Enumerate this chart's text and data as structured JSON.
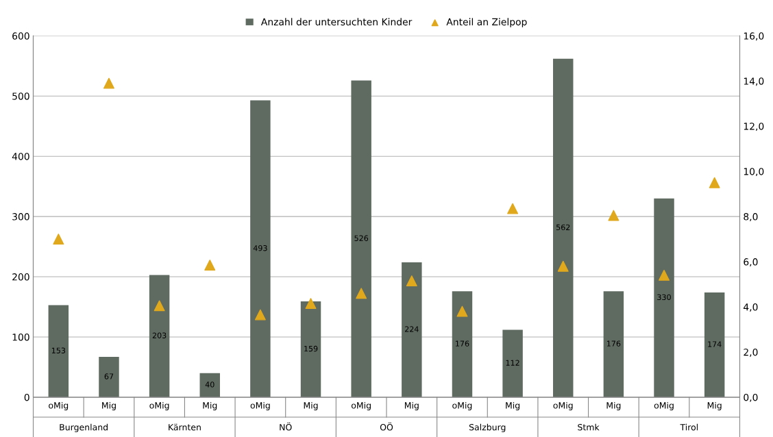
{
  "chart_data": {
    "type": "bar",
    "categories": [
      "oMig",
      "Mig",
      "oMig",
      "Mig",
      "oMig",
      "Mig",
      "oMig",
      "Mig",
      "oMig",
      "Mig",
      "oMig",
      "Mig",
      "oMig",
      "Mig"
    ],
    "series": [
      {
        "name": "Anzahl der untersuchten Kinder",
        "color": "#5f6a60",
        "values": [
          153,
          67,
          203,
          40,
          493,
          159,
          526,
          224,
          176,
          112,
          562,
          176,
          330,
          174
        ],
        "value_labels": [
          "153",
          "67",
          "203",
          "40",
          "493",
          "159",
          "526",
          "224",
          "176",
          "112",
          "562",
          "176",
          "330",
          "174"
        ]
      },
      {
        "name": "Anteil an Zielpop",
        "type": "scatter",
        "axis": "y2",
        "color": "#e0a81c",
        "marker": "triangle",
        "values": [
          7.0,
          13.9,
          4.05,
          5.85,
          3.65,
          4.15,
          4.6,
          5.15,
          3.8,
          8.35,
          5.8,
          8.05,
          5.4,
          9.5
        ]
      }
    ],
    "annotations": [
      "Burgenland",
      "Kärnten",
      "NÖ",
      "OÖ",
      "Salzburg",
      "Stmk",
      "Tirol"
    ],
    "ylim": [
      0,
      600
    ],
    "yticks": [
      0,
      100,
      200,
      300,
      400,
      500,
      600
    ],
    "y2lim": [
      0,
      16
    ],
    "y2ticks": [
      {
        "value": 0,
        "label": "0,0"
      },
      {
        "value": 2,
        "label": "2,0"
      },
      {
        "value": 4,
        "label": "4,0"
      },
      {
        "value": 6,
        "label": "6,0"
      },
      {
        "value": 8,
        "label": "8,0"
      },
      {
        "value": 10,
        "label": "10,0"
      },
      {
        "value": 12,
        "label": "12,0"
      },
      {
        "value": 14,
        "label": "14,0"
      },
      {
        "value": 16,
        "label": "16,0"
      }
    ],
    "grid": "y",
    "legend": "top"
  }
}
